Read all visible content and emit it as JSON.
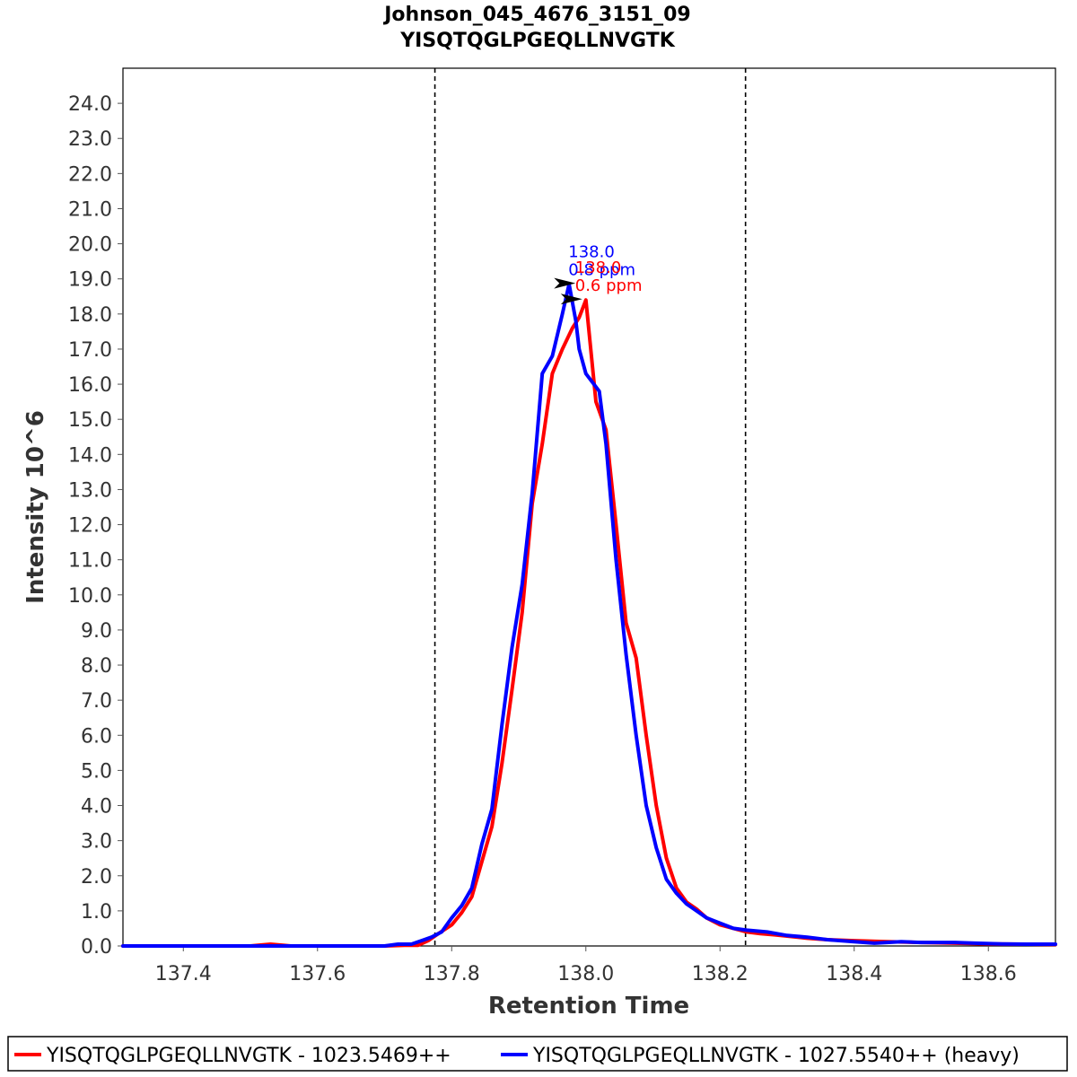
{
  "chart_data": {
    "type": "line",
    "title": "Johnson_045_4676_3151_09",
    "subtitle": "YISQTQGLPGEQLLNVGTK",
    "xlabel": "Retention Time",
    "ylabel": "Intensity 10^6",
    "xlim": [
      137.31,
      138.7
    ],
    "ylim": [
      0,
      25.0
    ],
    "x_ticks": [
      "137.4",
      "137.6",
      "137.8",
      "138.0",
      "138.2",
      "138.4",
      "138.6"
    ],
    "y_ticks": [
      "0.0",
      "1.0",
      "2.0",
      "3.0",
      "4.0",
      "5.0",
      "6.0",
      "7.0",
      "8.0",
      "9.0",
      "10.0",
      "11.0",
      "12.0",
      "13.0",
      "14.0",
      "15.0",
      "16.0",
      "17.0",
      "18.0",
      "19.0",
      "20.0",
      "21.0",
      "22.0",
      "23.0",
      "24.0"
    ],
    "grid": false,
    "legend_position": "bottom",
    "boundaries": [
      137.775,
      138.238
    ],
    "series": [
      {
        "name": "YISQTQGLPGEQLLNVGTK - 1023.5469++",
        "color": "#ff0000",
        "x": [
          137.31,
          137.4,
          137.5,
          137.53,
          137.56,
          137.6,
          137.65,
          137.7,
          137.73,
          137.75,
          137.765,
          137.78,
          137.8,
          137.815,
          137.83,
          137.845,
          137.86,
          137.875,
          137.89,
          137.905,
          137.92,
          137.935,
          137.95,
          137.965,
          137.98,
          137.99,
          138.0,
          138.015,
          138.03,
          138.045,
          138.06,
          138.075,
          138.09,
          138.105,
          138.12,
          138.135,
          138.15,
          138.165,
          138.18,
          138.2,
          138.22,
          138.24,
          138.26,
          138.28,
          138.3,
          138.33,
          138.36,
          138.4,
          138.45,
          138.5,
          138.55,
          138.6,
          138.65,
          138.7
        ],
        "y": [
          0.0,
          0.0,
          0.0,
          0.05,
          0.0,
          0.0,
          0.0,
          0.0,
          0.02,
          0.02,
          0.15,
          0.35,
          0.6,
          0.95,
          1.4,
          2.4,
          3.4,
          5.2,
          7.3,
          9.5,
          12.6,
          14.3,
          16.3,
          17.0,
          17.6,
          17.9,
          18.4,
          15.5,
          14.7,
          12.0,
          9.2,
          8.2,
          6.0,
          4.0,
          2.5,
          1.65,
          1.25,
          1.05,
          0.8,
          0.6,
          0.5,
          0.4,
          0.35,
          0.32,
          0.28,
          0.22,
          0.18,
          0.15,
          0.12,
          0.1,
          0.08,
          0.06,
          0.05,
          0.04
        ]
      },
      {
        "name": "YISQTQGLPGEQLLNVGTK - 1027.5540++ (heavy)",
        "color": "#0000ff",
        "x": [
          137.31,
          137.4,
          137.5,
          137.6,
          137.7,
          137.72,
          137.74,
          137.755,
          137.77,
          137.785,
          137.8,
          137.815,
          137.83,
          137.845,
          137.86,
          137.875,
          137.89,
          137.905,
          137.92,
          137.935,
          137.95,
          137.965,
          137.975,
          137.985,
          137.99,
          138.0,
          138.02,
          138.03,
          138.045,
          138.06,
          138.075,
          138.09,
          138.105,
          138.12,
          138.135,
          138.15,
          138.165,
          138.18,
          138.2,
          138.22,
          138.24,
          138.27,
          138.3,
          138.33,
          138.36,
          138.4,
          138.43,
          138.47,
          138.5,
          138.55,
          138.58,
          138.62,
          138.66,
          138.7
        ],
        "y": [
          0.0,
          0.0,
          0.0,
          0.0,
          0.0,
          0.05,
          0.05,
          0.15,
          0.25,
          0.4,
          0.8,
          1.15,
          1.65,
          2.9,
          3.9,
          6.3,
          8.5,
          10.3,
          12.9,
          16.3,
          16.8,
          18.0,
          18.85,
          17.8,
          17.0,
          16.3,
          15.8,
          14.3,
          11.0,
          8.3,
          6.0,
          4.0,
          2.8,
          1.9,
          1.5,
          1.2,
          1.0,
          0.8,
          0.65,
          0.5,
          0.45,
          0.4,
          0.3,
          0.25,
          0.18,
          0.12,
          0.08,
          0.12,
          0.1,
          0.1,
          0.08,
          0.06,
          0.05,
          0.05
        ]
      }
    ],
    "annotations": [
      {
        "series": 1,
        "label": "138.0",
        "ppm": "0.8 ppm",
        "x": 137.99,
        "y": 18.85,
        "color": "#0000ff"
      },
      {
        "series": 0,
        "label": "138.0",
        "ppm": "0.6 ppm",
        "x": 138.0,
        "y": 18.4,
        "color": "#ff0000"
      }
    ]
  }
}
